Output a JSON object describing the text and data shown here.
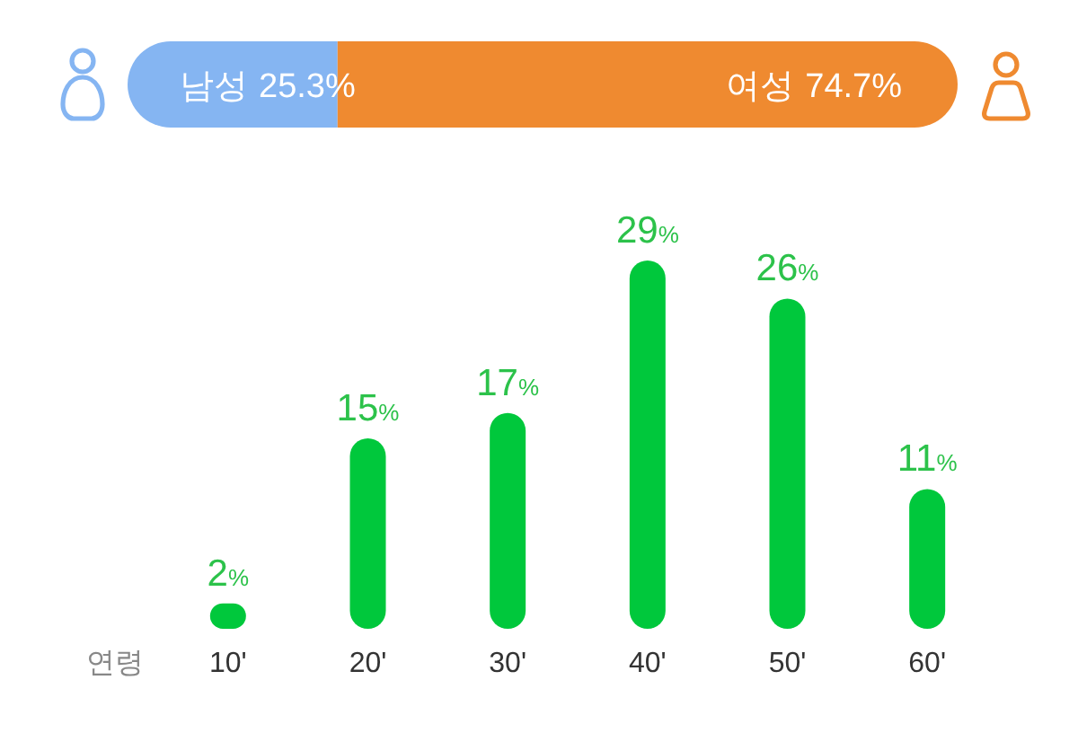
{
  "chart_data": [
    {
      "type": "bar",
      "orientation": "horizontal",
      "stacked": true,
      "categories": [
        null
      ],
      "series": [
        {
          "name": "남성",
          "color": "#85b5f2",
          "values": [
            25.3
          ],
          "value_labels": [
            "25.3%"
          ]
        },
        {
          "name": "여성",
          "color": "#ef8a30",
          "values": [
            74.7
          ],
          "value_labels": [
            "74.7%"
          ]
        }
      ]
    },
    {
      "type": "bar",
      "xlabel": "연령",
      "categories": [
        "10'",
        "20'",
        "30'",
        "40'",
        "50'",
        "60'"
      ],
      "values": [
        2,
        15,
        17,
        29,
        26,
        11
      ],
      "color": "#00c83c",
      "value_labels": [
        "2%",
        "15%",
        "17%",
        "29%",
        "26%",
        "11%"
      ]
    }
  ]
}
